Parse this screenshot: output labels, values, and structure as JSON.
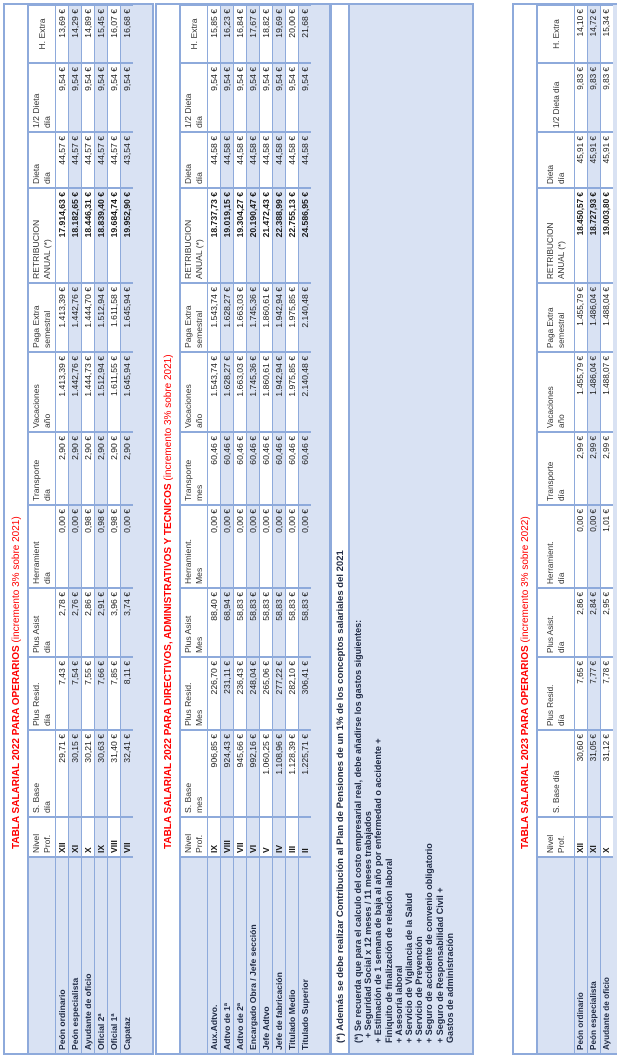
{
  "colors": {
    "border": "#8eaadb",
    "fill": "#d9e2f3",
    "title": "#ff0000"
  },
  "tables": [
    {
      "title": "TABLA SALARIAL 2022 PARA OPERARIOS",
      "subtitle": "(incremento 3% sobre 2021)",
      "headers": [
        "",
        "Nivel\nProf.",
        "S. Base\ndía",
        "Plus Resid.\ndía",
        "Plus Asist\ndía",
        "Herramient\ndía",
        "Transporte\ndía",
        "Vacaciones\naño",
        "Paga Extra\nsemestral",
        "RETRIBUCION\nANUAL (*)",
        "Dieta\ndía",
        "1/2 Dieta\ndía",
        "H. Extra"
      ],
      "rows": [
        [
          "Peón ordinario",
          "XII",
          "29,71 €",
          "7,43 €",
          "2,78 €",
          "0,00 €",
          "2,90 €",
          "1.413,39 €",
          "1.413,39 €",
          "17.914,63 €",
          "44,57 €",
          "9,54 €",
          "13,69 €"
        ],
        [
          "Peón especialista",
          "XI",
          "30,15 €",
          "7,54 €",
          "2,76 €",
          "0,00 €",
          "2,90 €",
          "1.442,76 €",
          "1.442,76 €",
          "18.182,65 €",
          "44,57 €",
          "9,54 €",
          "14,29 €"
        ],
        [
          "Ayudante de oficio",
          "X",
          "30,21 €",
          "7,55 €",
          "2,86 €",
          "0,98 €",
          "2,90 €",
          "1.444,73 €",
          "1.444,70 €",
          "18.446,31 €",
          "44,57 €",
          "9,54 €",
          "14,89 €"
        ],
        [
          "Oficial 2ª",
          "IX",
          "30,63 €",
          "7,66 €",
          "2,91 €",
          "0,98 €",
          "2,90 €",
          "1.512,94 €",
          "1.512,94 €",
          "18.839,40 €",
          "44,57 €",
          "9,54 €",
          "15,45 €"
        ],
        [
          "Oficial 1ª",
          "VIII",
          "31,40 €",
          "7,85 €",
          "3,96 €",
          "0,98 €",
          "2,90 €",
          "1.611,55 €",
          "1.611,58 €",
          "19.684,74 €",
          "44,57 €",
          "9,54 €",
          "16,07 €"
        ],
        [
          "Capataz",
          "VII",
          "32,41 €",
          "8,11 €",
          "3,74 €",
          "0,00 €",
          "2,90 €",
          "1.645,94 €",
          "1.645,94 €",
          "19.952,90 €",
          "43,54 €",
          "9,54 €",
          "16,68 €"
        ]
      ]
    },
    {
      "title": "TABLA SALARIAL 2022 PARA DIRECTIVOS, ADMINISTRATIVOS Y TECNICOS",
      "subtitle": "(incremento 3% sobre 2021)",
      "headers": [
        "",
        "Nivel\nProf.",
        "S. Base\nmes",
        "Plus Resid.\nMes",
        "Plus Asist\nMes",
        "Herramient.\nMes",
        "Transporte\nmes",
        "Vacaciones\naño",
        "Paga Extra\nsemestral",
        "RETRIBUCION\nANUAL (*)",
        "Dieta\ndía",
        "1/2 Dieta\ndía",
        "H. Extra"
      ],
      "rows": [
        [
          "Aux.Adtvo.",
          "IX",
          "906,85 €",
          "226,70 €",
          "88,40 €",
          "0,00 €",
          "60,46 €",
          "1.543,74 €",
          "1.543,74 €",
          "18.737,73 €",
          "44,58 €",
          "9,54 €",
          "15,85 €"
        ],
        [
          "Adtvo de 1ª",
          "VIII",
          "924,43 €",
          "231,11 €",
          "68,94 €",
          "0,00 €",
          "60,46 €",
          "1.628,27 €",
          "1.628,27 €",
          "19.019,15 €",
          "44,58 €",
          "9,54 €",
          "16,23 €"
        ],
        [
          "Adtvo de 2ª",
          "VII",
          "945,66 €",
          "236,43 €",
          "58,83 €",
          "0,00 €",
          "60,46 €",
          "1.663,03 €",
          "1.663,03 €",
          "19.304,27 €",
          "44,58 €",
          "9,54 €",
          "16,84 €"
        ],
        [
          "Encargado Obra / Jefe sección",
          "VI",
          "992,16 €",
          "248,04 €",
          "58,83 €",
          "0,00 €",
          "60,46 €",
          "1.745,36 €",
          "1.745,36 €",
          "20.190,47 €",
          "44,58 €",
          "9,54 €",
          "17,67 €"
        ],
        [
          "Jefe Adtvo",
          "V",
          "1.060,25 €",
          "265,06 €",
          "58,83 €",
          "0,00 €",
          "60,46 €",
          "1.860,61 €",
          "1.860,61 €",
          "21.472,43 €",
          "44,58 €",
          "9,54 €",
          "18,82 €"
        ],
        [
          "Jefe de fabricación",
          "IV",
          "1.108,96 €",
          "277,22 €",
          "58,83 €",
          "0,00 €",
          "60,46 €",
          "1.942,94 €",
          "1.942,94 €",
          "22.388,99 €",
          "44,58 €",
          "9,54 €",
          "19,69 €"
        ],
        [
          "Titulado Medio",
          "III",
          "1.128,39 €",
          "282,10 €",
          "58,83 €",
          "0,00 €",
          "60,46 €",
          "1.975,85 €",
          "1.975,85 €",
          "22.755,13 €",
          "44,58 €",
          "9,54 €",
          "20,00 €"
        ],
        [
          "Titulado Superior",
          "II",
          "1.225,71 €",
          "306,41 €",
          "58,83 €",
          "0,00 €",
          "60,46 €",
          "2.140,48 €",
          "2.140,48 €",
          "24.586,95 €",
          "44,58 €",
          "9,54 €",
          "21,68 €"
        ]
      ]
    },
    {
      "title": "TABLA SALARIAL 2023 PARA OPERARIOS",
      "subtitle": "(incremento 3% sobre 2022)",
      "headers": [
        "",
        "Nivel\nProf.",
        "S. Base día",
        "Plus Resid.\ndía",
        "Plus Asist.\ndía",
        "Herramient.\ndía",
        "Transporte\ndía",
        "Vacaciones\naño",
        "Paga Extra\nsemestral",
        "RETRIBUCION\nANUAL (*)",
        "Dieta\ndía",
        "1/2 Dieta día",
        "H. Extra"
      ],
      "rows": [
        [
          "Peón ordinario",
          "XII",
          "30,60 €",
          "7,65 €",
          "2,86 €",
          "0,00 €",
          "2,99 €",
          "1.455,79 €",
          "1.455,79 €",
          "18.450,57 €",
          "45,91 €",
          "9,83 €",
          "14,10 €"
        ],
        [
          "Peón especialista",
          "XI",
          "31,05 €",
          "7,77 €",
          "2,84 €",
          "0,00 €",
          "2,99 €",
          "1.486,04 €",
          "1.486,04 €",
          "18.727,93 €",
          "45,91 €",
          "9,83 €",
          "14,72 €"
        ],
        [
          "Ayudante de oficio",
          "X",
          "31,12 €",
          "7,78 €",
          "2,95 €",
          "1,01 €",
          "2,99 €",
          "1.488,07 €",
          "1.488,04 €",
          "19.003,80 €",
          "45,91 €",
          "9,83 €",
          "15,34 €"
        ]
      ]
    }
  ],
  "notes": {
    "first": "(*) Además se debe realizar Contribución al Plan de Pensiones de un 1% de los conceptos salariales del 2021",
    "lines": [
      "(*) Se recuerda que para el calculo del costo empresarial real, debe añadirse los gastos siguientes:",
      "  + Seguridad Social x 12 meses / 11 meses trabajados",
      "+ Estimación de 1 semana de baja al año por enfermedad o accidente +",
      "Finiquito de finalización de relación laboral",
      "+ Asesoría laboral",
      "+ Servicio de Vigilancia de la Salud",
      "+ Servicio de Prevención",
      "+ Seguro de accidente de convenio obligatorio",
      "+ Seguro de Responsabilidad Civil +",
      "Gastos de administración"
    ]
  }
}
